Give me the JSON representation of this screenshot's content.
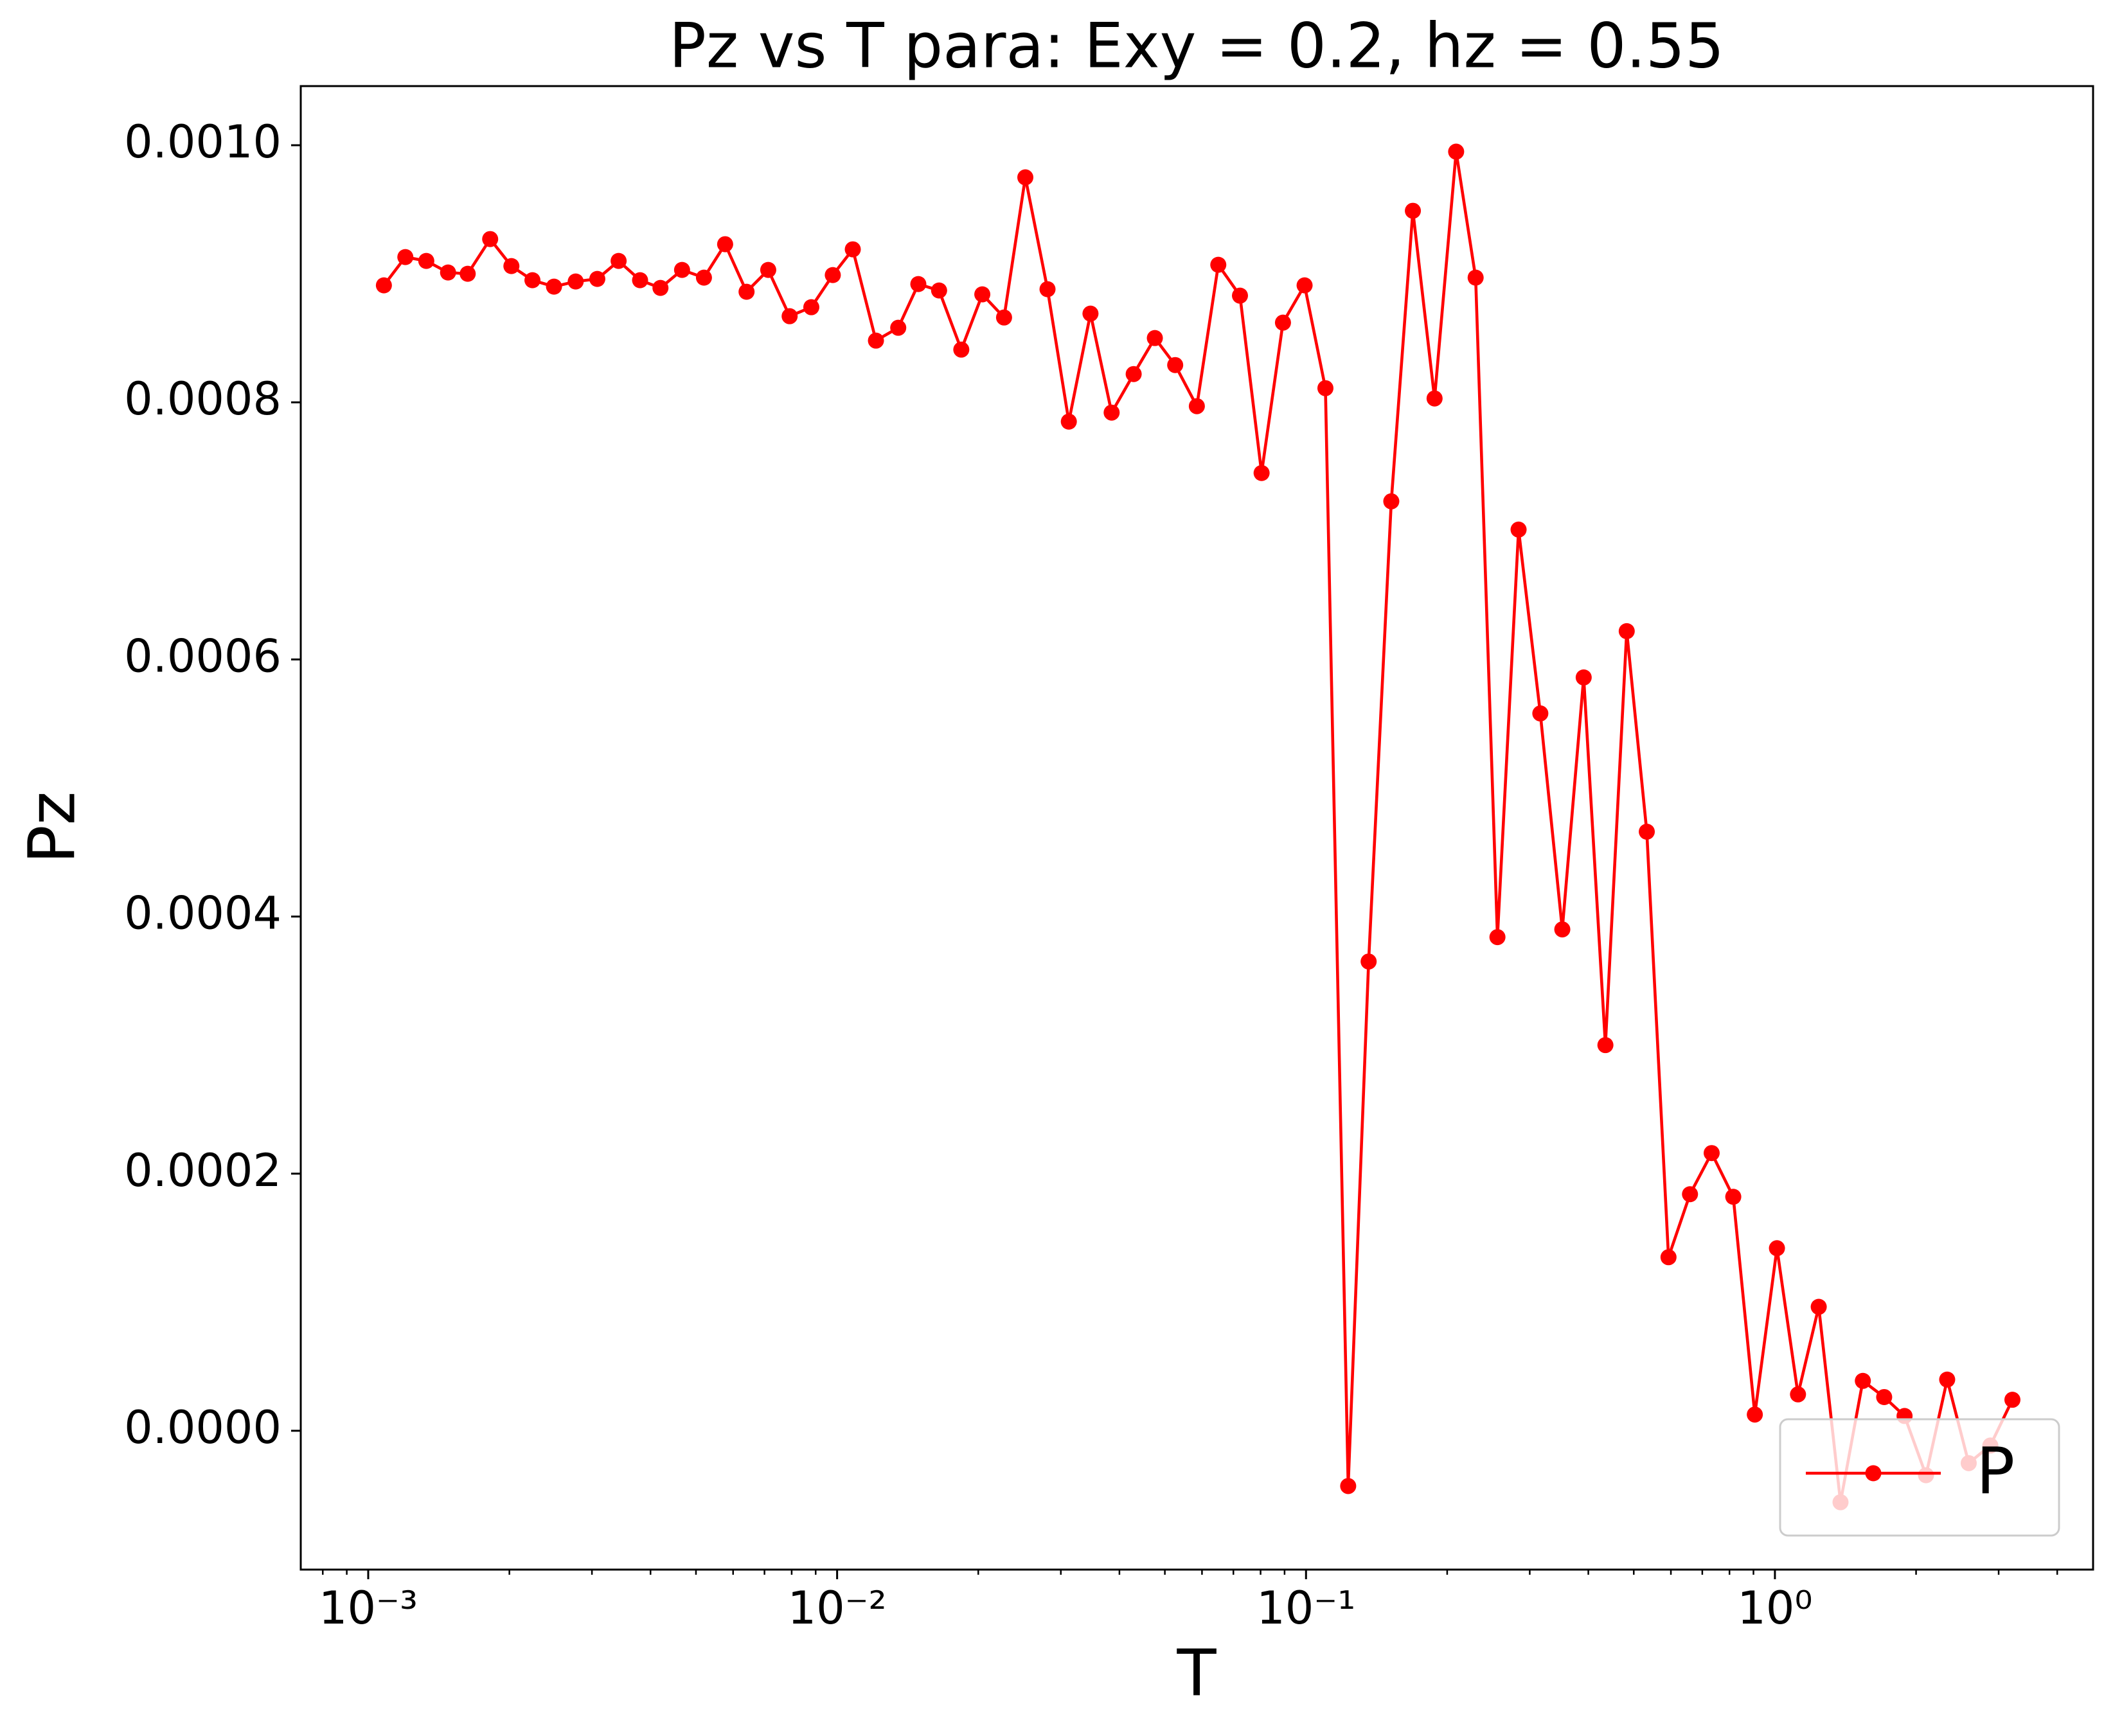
{
  "chart_data": {
    "type": "line",
    "title": "Pz vs T para: Exy = 0.2, hz = 0.55",
    "xlabel": "T",
    "ylabel": "Pz",
    "xscale": "log",
    "legend": "lower right",
    "grid": false,
    "x": [
      0.00108,
      0.0012,
      0.00133,
      0.00148,
      0.00163,
      0.00182,
      0.00202,
      0.00224,
      0.00249,
      0.00277,
      0.00308,
      0.00342,
      0.0038,
      0.0042,
      0.00467,
      0.0052,
      0.00577,
      0.00641,
      0.00713,
      0.00792,
      0.00881,
      0.00979,
      0.0108,
      0.0121,
      0.0135,
      0.0149,
      0.0165,
      0.0184,
      0.0204,
      0.0227,
      0.0252,
      0.0281,
      0.0312,
      0.0347,
      0.0385,
      0.0429,
      0.0476,
      0.0526,
      0.0585,
      0.065,
      0.0723,
      0.0804,
      0.0893,
      0.0993,
      0.11,
      0.123,
      0.136,
      0.152,
      0.169,
      0.188,
      0.209,
      0.23,
      0.256,
      0.284,
      0.316,
      0.352,
      0.391,
      0.435,
      0.483,
      0.533,
      0.593,
      0.659,
      0.733,
      0.815,
      0.906,
      1.01,
      1.12,
      1.24,
      1.38,
      1.54,
      1.71,
      1.89,
      2.1,
      2.33,
      2.59,
      2.88,
      3.21
    ],
    "series": [
      {
        "name": "P",
        "color": "#ff0000",
        "values": [
          0.000891,
          0.000913,
          0.00091,
          0.000901,
          0.0009,
          0.000927,
          0.000906,
          0.000895,
          0.00089,
          0.000894,
          0.000896,
          0.00091,
          0.000895,
          0.000889,
          0.000903,
          0.000897,
          0.000923,
          0.000886,
          0.000903,
          0.000867,
          0.000874,
          0.000899,
          0.000919,
          0.000848,
          0.000858,
          0.000892,
          0.000887,
          0.000841,
          0.000884,
          0.000866,
          0.000975,
          0.000888,
          0.000785,
          0.000869,
          0.000792,
          0.000822,
          0.00085,
          0.000829,
          0.000797,
          0.000907,
          0.000883,
          0.000745,
          0.000862,
          0.000891,
          0.000811,
          -4.3e-05,
          0.000365,
          0.000723,
          0.000949,
          0.000803,
          0.000995,
          0.000897,
          0.000384,
          0.000701,
          0.000558,
          0.00039,
          0.000586,
          0.0003,
          0.000622,
          0.000466,
          0.000135,
          0.000184,
          0.000216,
          0.000182,
          1.26e-05,
          0.000142,
          2.83e-05,
          9.64e-05,
          -5.56e-05,
          3.88e-05,
          2.62e-05,
          1.15e-05,
          -3.46e-05,
          3.98e-05,
          -2.52e-05,
          -1.15e-05,
          2.41e-05
        ]
      }
    ],
    "xlim": [
      0.000718,
      4.77
    ],
    "ylim": [
      -0.000108,
      0.001046
    ],
    "xticks": [
      {
        "value": 0.001,
        "label": "10⁻³"
      },
      {
        "value": 0.01,
        "label": "10⁻²"
      },
      {
        "value": 0.1,
        "label": "10⁻¹"
      },
      {
        "value": 1,
        "label": "10⁰"
      }
    ],
    "xminorticks": [
      0.0008,
      0.0009,
      0.002,
      0.003,
      0.004,
      0.005,
      0.006,
      0.007,
      0.008,
      0.009,
      0.02,
      0.03,
      0.04,
      0.05,
      0.06,
      0.07,
      0.08,
      0.09,
      0.2,
      0.3,
      0.4,
      0.5,
      0.6,
      0.7,
      0.8,
      0.9,
      2,
      3,
      4
    ],
    "yticks": [
      {
        "value": 0,
        "label": "0.0000"
      },
      {
        "value": 0.0002,
        "label": "0.0002"
      },
      {
        "value": 0.0004,
        "label": "0.0004"
      },
      {
        "value": 0.0006,
        "label": "0.0006"
      },
      {
        "value": 0.0008,
        "label": "0.0008"
      },
      {
        "value": 0.001,
        "label": "0.0010"
      }
    ]
  }
}
